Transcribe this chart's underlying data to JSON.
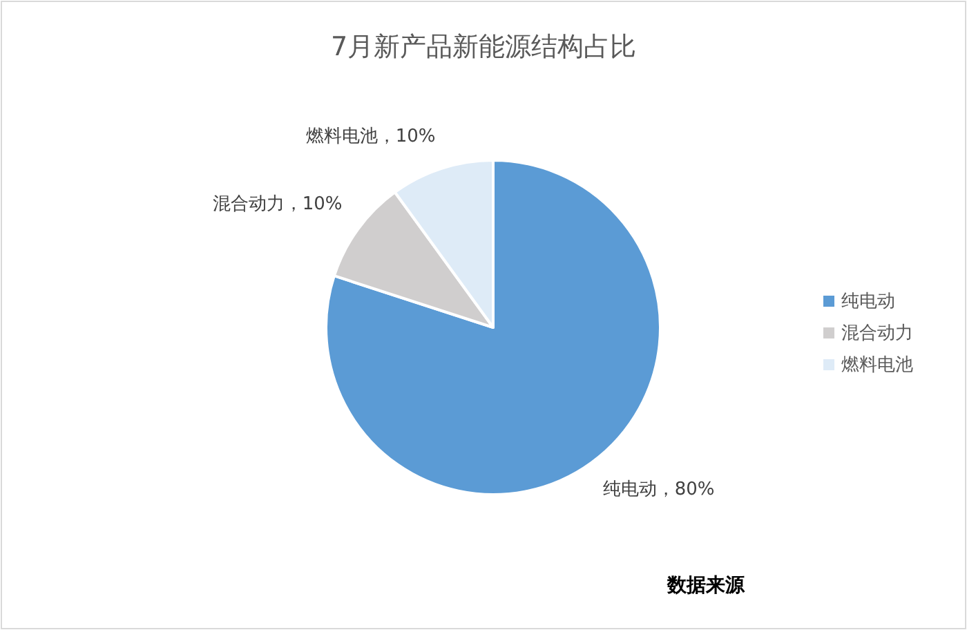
{
  "chart_data": {
    "type": "pie",
    "title": "7月新产品新能源结构占比",
    "categories": [
      "纯电动",
      "混合动力",
      "燃料电池"
    ],
    "values": [
      80,
      10,
      10
    ],
    "colors": [
      "#5b9bd5",
      "#d0cece",
      "#deebf7"
    ],
    "value_labels": [
      "纯电动，80%",
      "混合动力，10%",
      "燃料电池，10%"
    ],
    "legend": "right",
    "annotations": [
      "数据来源"
    ]
  }
}
